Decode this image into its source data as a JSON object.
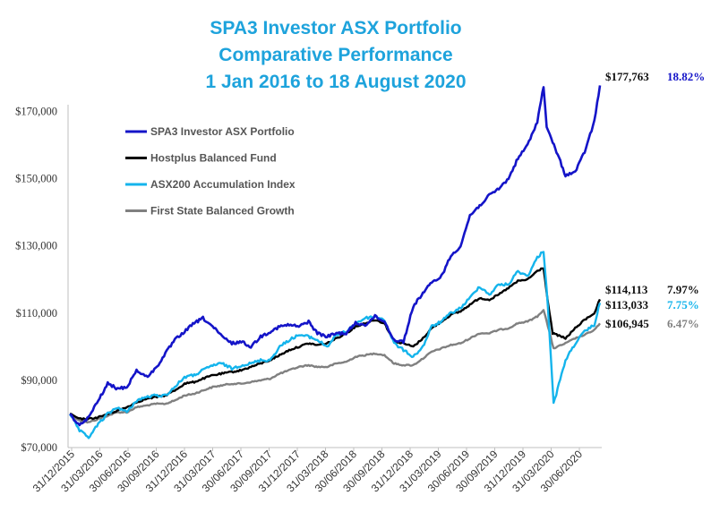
{
  "chart_data": {
    "type": "line",
    "title": [
      "SPA3 Investor ASX Portfolio",
      "Comparative Performance",
      "1 Jan 2016 to 18 August 2020"
    ],
    "title_color": "#1ea3dc",
    "y_axis": {
      "min": 70000,
      "max": 180000,
      "ticks": [
        70000,
        90000,
        110000,
        130000,
        150000,
        170000
      ],
      "tick_labels": [
        "$70,000",
        "$90,000",
        "$110,000",
        "$130,000",
        "$150,000",
        "$170,000"
      ]
    },
    "x_axis": {
      "start": "2015-12-31",
      "end": "2020-08-18",
      "tick_labels": [
        "31/12/2015",
        "31/03/2016",
        "30/06/2016",
        "30/09/2016",
        "31/12/2016",
        "31/03/2017",
        "30/06/2017",
        "30/09/2017",
        "31/12/2017",
        "31/03/2018",
        "30/06/2018",
        "30/09/2018",
        "31/12/2018",
        "31/03/2019",
        "30/06/2019",
        "30/09/2019",
        "31/12/2019",
        "31/03/2020",
        "30/06/2020"
      ]
    },
    "grid": false,
    "legend_position": "top-left",
    "series": [
      {
        "name": "SPA3 Investor ASX Portfolio",
        "color": "#1414c8",
        "end_value_label": "$177,763",
        "return_label": "18.82%",
        "return_color": "#1414c8",
        "points": [
          [
            "2015-12-31",
            80000
          ],
          [
            "2016-01-31",
            76500
          ],
          [
            "2016-02-29",
            79000
          ],
          [
            "2016-03-31",
            84000
          ],
          [
            "2016-04-30",
            89000
          ],
          [
            "2016-05-31",
            87500
          ],
          [
            "2016-06-30",
            88000
          ],
          [
            "2016-07-31",
            93000
          ],
          [
            "2016-08-31",
            91000
          ],
          [
            "2016-09-30",
            93500
          ],
          [
            "2016-10-31",
            98000
          ],
          [
            "2016-11-30",
            102000
          ],
          [
            "2016-12-31",
            104500
          ],
          [
            "2017-01-31",
            107000
          ],
          [
            "2017-02-28",
            108500
          ],
          [
            "2017-03-31",
            106000
          ],
          [
            "2017-04-30",
            103000
          ],
          [
            "2017-05-31",
            101000
          ],
          [
            "2017-06-30",
            101500
          ],
          [
            "2017-07-31",
            100000
          ],
          [
            "2017-08-31",
            103000
          ],
          [
            "2017-09-30",
            104500
          ],
          [
            "2017-10-31",
            106000
          ],
          [
            "2017-11-30",
            106500
          ],
          [
            "2017-12-31",
            106000
          ],
          [
            "2018-01-31",
            107500
          ],
          [
            "2018-02-28",
            104000
          ],
          [
            "2018-03-31",
            103000
          ],
          [
            "2018-04-30",
            104000
          ],
          [
            "2018-05-31",
            104000
          ],
          [
            "2018-06-30",
            107000
          ],
          [
            "2018-07-31",
            106500
          ],
          [
            "2018-08-31",
            109000
          ],
          [
            "2018-09-30",
            107500
          ],
          [
            "2018-10-31",
            102000
          ],
          [
            "2018-11-30",
            101500
          ],
          [
            "2018-12-31",
            112000
          ],
          [
            "2019-01-31",
            116000
          ],
          [
            "2019-02-28",
            119000
          ],
          [
            "2019-03-31",
            121000
          ],
          [
            "2019-04-30",
            127000
          ],
          [
            "2019-05-31",
            130000
          ],
          [
            "2019-06-30",
            139000
          ],
          [
            "2019-07-31",
            142000
          ],
          [
            "2019-08-31",
            145000
          ],
          [
            "2019-09-30",
            147000
          ],
          [
            "2019-10-31",
            150000
          ],
          [
            "2019-11-30",
            156000
          ],
          [
            "2019-12-31",
            160000
          ],
          [
            "2020-01-31",
            167000
          ],
          [
            "2020-02-20",
            177500
          ],
          [
            "2020-03-01",
            165000
          ],
          [
            "2020-03-20",
            161000
          ],
          [
            "2020-04-30",
            151000
          ],
          [
            "2020-05-31",
            152000
          ],
          [
            "2020-06-30",
            158000
          ],
          [
            "2020-07-31",
            167000
          ],
          [
            "2020-08-18",
            177763
          ]
        ]
      },
      {
        "name": "Hostplus Balanced Fund",
        "color": "#000000",
        "end_value_label": "$114,113",
        "return_label": "7.97%",
        "return_color": "#111111",
        "points": [
          [
            "2015-12-31",
            80000
          ],
          [
            "2016-01-31",
            78500
          ],
          [
            "2016-02-29",
            78500
          ],
          [
            "2016-03-31",
            79000
          ],
          [
            "2016-04-30",
            80000
          ],
          [
            "2016-05-31",
            81000
          ],
          [
            "2016-06-30",
            82000
          ],
          [
            "2016-07-31",
            83500
          ],
          [
            "2016-08-31",
            84500
          ],
          [
            "2016-09-30",
            85000
          ],
          [
            "2016-10-31",
            85500
          ],
          [
            "2016-11-30",
            87000
          ],
          [
            "2016-12-31",
            89000
          ],
          [
            "2017-01-31",
            89500
          ],
          [
            "2017-02-28",
            90500
          ],
          [
            "2017-03-31",
            91500
          ],
          [
            "2017-04-30",
            92000
          ],
          [
            "2017-05-31",
            92500
          ],
          [
            "2017-06-30",
            93000
          ],
          [
            "2017-07-31",
            94000
          ],
          [
            "2017-08-31",
            95000
          ],
          [
            "2017-09-30",
            96000
          ],
          [
            "2017-10-31",
            97500
          ],
          [
            "2017-11-30",
            99000
          ],
          [
            "2017-12-31",
            100000
          ],
          [
            "2018-01-31",
            101000
          ],
          [
            "2018-02-28",
            100500
          ],
          [
            "2018-03-31",
            101000
          ],
          [
            "2018-04-30",
            102500
          ],
          [
            "2018-05-31",
            104000
          ],
          [
            "2018-06-30",
            106000
          ],
          [
            "2018-07-31",
            107000
          ],
          [
            "2018-08-31",
            108000
          ],
          [
            "2018-09-30",
            107000
          ],
          [
            "2018-10-31",
            101500
          ],
          [
            "2018-11-30",
            101000
          ],
          [
            "2018-12-31",
            100000
          ],
          [
            "2019-01-31",
            102500
          ],
          [
            "2019-02-28",
            105500
          ],
          [
            "2019-03-31",
            107500
          ],
          [
            "2019-04-30",
            109500
          ],
          [
            "2019-05-31",
            110500
          ],
          [
            "2019-06-30",
            112500
          ],
          [
            "2019-07-31",
            114500
          ],
          [
            "2019-08-31",
            114000
          ],
          [
            "2019-09-30",
            115500
          ],
          [
            "2019-10-31",
            117500
          ],
          [
            "2019-11-30",
            119500
          ],
          [
            "2019-12-31",
            120000
          ],
          [
            "2020-01-31",
            122500
          ],
          [
            "2020-02-20",
            123500
          ],
          [
            "2020-03-05",
            113000
          ],
          [
            "2020-03-20",
            104000
          ],
          [
            "2020-04-30",
            102500
          ],
          [
            "2020-05-31",
            105500
          ],
          [
            "2020-06-30",
            108000
          ],
          [
            "2020-07-31",
            110000
          ],
          [
            "2020-08-18",
            114113
          ]
        ]
      },
      {
        "name": "ASX200 Accumulation Index",
        "color": "#14b4ec",
        "end_value_label": "$113,033",
        "return_label": "7.75%",
        "return_color": "#14b4ec",
        "points": [
          [
            "2015-12-31",
            80000
          ],
          [
            "2016-01-31",
            75000
          ],
          [
            "2016-02-29",
            73000
          ],
          [
            "2016-03-31",
            77000
          ],
          [
            "2016-04-30",
            80000
          ],
          [
            "2016-05-31",
            82000
          ],
          [
            "2016-06-30",
            80500
          ],
          [
            "2016-07-31",
            84000
          ],
          [
            "2016-08-31",
            85000
          ],
          [
            "2016-09-30",
            85500
          ],
          [
            "2016-10-31",
            85500
          ],
          [
            "2016-11-30",
            88000
          ],
          [
            "2016-12-31",
            91000
          ],
          [
            "2017-01-31",
            91500
          ],
          [
            "2017-02-28",
            93000
          ],
          [
            "2017-03-31",
            94500
          ],
          [
            "2017-04-30",
            95000
          ],
          [
            "2017-05-31",
            93500
          ],
          [
            "2017-06-30",
            94500
          ],
          [
            "2017-07-31",
            95000
          ],
          [
            "2017-08-31",
            96000
          ],
          [
            "2017-09-30",
            96000
          ],
          [
            "2017-10-31",
            100000
          ],
          [
            "2017-11-30",
            102000
          ],
          [
            "2017-12-31",
            103500
          ],
          [
            "2018-01-31",
            103000
          ],
          [
            "2018-02-28",
            102000
          ],
          [
            "2018-03-31",
            100000
          ],
          [
            "2018-04-30",
            103500
          ],
          [
            "2018-05-31",
            104500
          ],
          [
            "2018-06-30",
            107000
          ],
          [
            "2018-07-31",
            108500
          ],
          [
            "2018-08-31",
            109000
          ],
          [
            "2018-09-30",
            108000
          ],
          [
            "2018-10-31",
            101000
          ],
          [
            "2018-11-30",
            99000
          ],
          [
            "2018-12-31",
            97000
          ],
          [
            "2019-01-31",
            100000
          ],
          [
            "2019-02-28",
            106000
          ],
          [
            "2019-03-31",
            107500
          ],
          [
            "2019-04-30",
            110000
          ],
          [
            "2019-05-31",
            111500
          ],
          [
            "2019-06-30",
            114500
          ],
          [
            "2019-07-31",
            118000
          ],
          [
            "2019-08-31",
            115500
          ],
          [
            "2019-09-30",
            118500
          ],
          [
            "2019-10-31",
            118500
          ],
          [
            "2019-11-30",
            122500
          ],
          [
            "2019-12-31",
            121000
          ],
          [
            "2020-01-31",
            126500
          ],
          [
            "2020-02-20",
            128500
          ],
          [
            "2020-03-05",
            112000
          ],
          [
            "2020-03-23",
            83000
          ],
          [
            "2020-04-30",
            96000
          ],
          [
            "2020-05-31",
            101000
          ],
          [
            "2020-06-30",
            104500
          ],
          [
            "2020-07-31",
            106500
          ],
          [
            "2020-08-18",
            113033
          ]
        ]
      },
      {
        "name": "First State Balanced Growth",
        "color": "#808080",
        "end_value_label": "$106,945",
        "return_label": "6.47%",
        "return_color": "#808080",
        "points": [
          [
            "2015-12-31",
            80000
          ],
          [
            "2016-01-31",
            78000
          ],
          [
            "2016-02-29",
            77500
          ],
          [
            "2016-03-31",
            78500
          ],
          [
            "2016-04-30",
            79500
          ],
          [
            "2016-05-31",
            80500
          ],
          [
            "2016-06-30",
            80500
          ],
          [
            "2016-07-31",
            82000
          ],
          [
            "2016-08-31",
            82500
          ],
          [
            "2016-09-30",
            83000
          ],
          [
            "2016-10-31",
            83000
          ],
          [
            "2016-11-30",
            84000
          ],
          [
            "2016-12-31",
            85500
          ],
          [
            "2017-01-31",
            86000
          ],
          [
            "2017-02-28",
            87000
          ],
          [
            "2017-03-31",
            88000
          ],
          [
            "2017-04-30",
            88500
          ],
          [
            "2017-05-31",
            89000
          ],
          [
            "2017-06-30",
            89000
          ],
          [
            "2017-07-31",
            89500
          ],
          [
            "2017-08-31",
            90000
          ],
          [
            "2017-09-30",
            90500
          ],
          [
            "2017-10-31",
            92000
          ],
          [
            "2017-11-30",
            93000
          ],
          [
            "2017-12-31",
            94000
          ],
          [
            "2018-01-31",
            94500
          ],
          [
            "2018-02-28",
            94000
          ],
          [
            "2018-03-31",
            94000
          ],
          [
            "2018-04-30",
            95000
          ],
          [
            "2018-05-31",
            95500
          ],
          [
            "2018-06-30",
            97000
          ],
          [
            "2018-07-31",
            97500
          ],
          [
            "2018-08-31",
            98000
          ],
          [
            "2018-09-30",
            97500
          ],
          [
            "2018-10-31",
            95000
          ],
          [
            "2018-11-30",
            94500
          ],
          [
            "2018-12-31",
            94500
          ],
          [
            "2019-01-31",
            96500
          ],
          [
            "2019-02-28",
            98500
          ],
          [
            "2019-03-31",
            99500
          ],
          [
            "2019-04-30",
            100500
          ],
          [
            "2019-05-31",
            101000
          ],
          [
            "2019-06-30",
            102500
          ],
          [
            "2019-07-31",
            104000
          ],
          [
            "2019-08-31",
            104000
          ],
          [
            "2019-09-30",
            105000
          ],
          [
            "2019-10-31",
            105500
          ],
          [
            "2019-11-30",
            107000
          ],
          [
            "2019-12-31",
            107500
          ],
          [
            "2020-01-31",
            109000
          ],
          [
            "2020-02-20",
            111000
          ],
          [
            "2020-03-05",
            106000
          ],
          [
            "2020-03-23",
            99500
          ],
          [
            "2020-04-30",
            101000
          ],
          [
            "2020-05-31",
            102500
          ],
          [
            "2020-06-30",
            103500
          ],
          [
            "2020-07-31",
            105000
          ],
          [
            "2020-08-18",
            106945
          ]
        ]
      }
    ]
  }
}
